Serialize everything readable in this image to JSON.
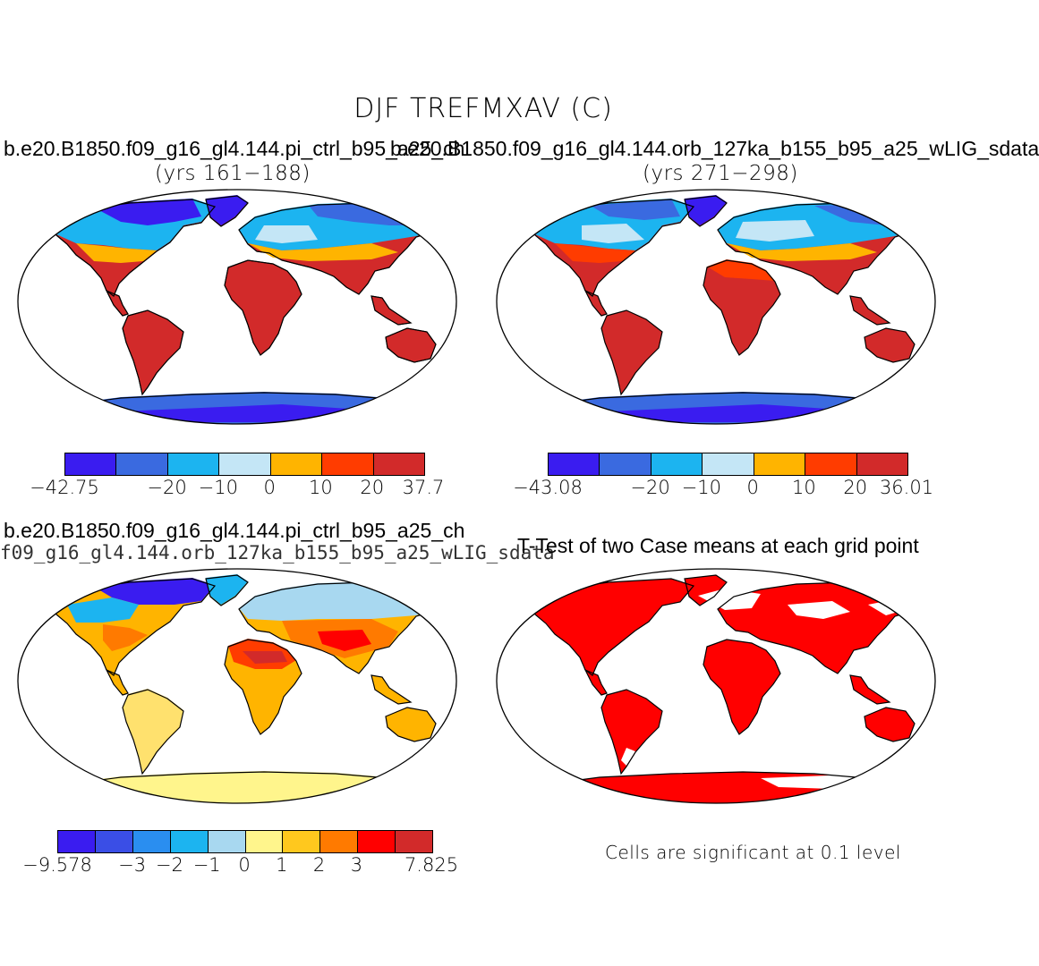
{
  "title": "DJF TREFMXAV (C)",
  "panels": {
    "ctrl": {
      "case": "b.e20.B1850.f09_g16_gl4.144.pi_ctrl_b95_a25_ch",
      "years": "(yrs 161−188)",
      "colorbar": {
        "colors": [
          "#3a1cf0",
          "#3a6ae0",
          "#1cb4f0",
          "#c4e6f6",
          "#ffb400",
          "#ff3c00",
          "#d22a2a"
        ],
        "ticks": [
          "−42.75",
          "−20",
          "−10",
          "0",
          "10",
          "20",
          "37.7"
        ]
      }
    },
    "orb": {
      "case": "b.e20.B1850.f09_g16_gl4.144.orb_127ka_b155_b95_a25_wLIG_sdata",
      "years": "(yrs 271−298)",
      "colorbar": {
        "colors": [
          "#3a1cf0",
          "#3a6ae0",
          "#1cb4f0",
          "#c4e6f6",
          "#ffb400",
          "#ff3c00",
          "#d22a2a"
        ],
        "ticks": [
          "−43.08",
          "−20",
          "−10",
          "0",
          "10",
          "20",
          "36.01"
        ]
      }
    },
    "diff": {
      "case_a": "b.e20.B1850.f09_g16_gl4.144.pi_ctrl_b95_a25_ch",
      "case_b": "f09_g16_gl4.144.orb_127ka_b155_b95_a25_wLIG_sdata",
      "colorbar": {
        "colors": [
          "#3a1cf0",
          "#3a4ee6",
          "#2a8ef0",
          "#1cb4f0",
          "#a8d8f0",
          "#fff58c",
          "#ffc81e",
          "#ff7a00",
          "#ff0000",
          "#d22a2a"
        ],
        "ticks": [
          "−9.578",
          "−3",
          "−2",
          "−1",
          "0",
          "1",
          "2",
          "3",
          "7.825"
        ]
      }
    },
    "ttest": {
      "title": "T-Test of two Case means at each grid point",
      "note": "Cells are significant at 0.1 level",
      "sig_color": "#ff0000"
    }
  }
}
